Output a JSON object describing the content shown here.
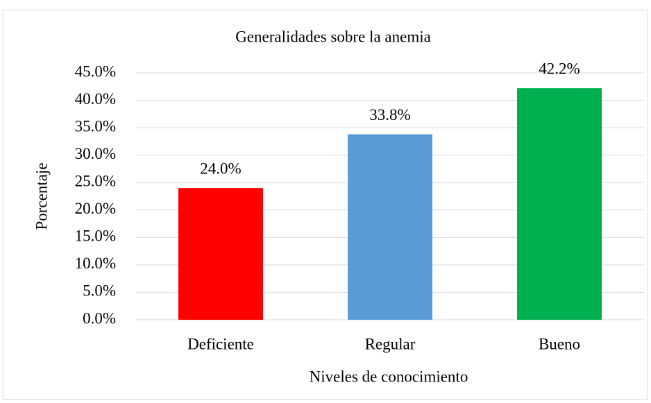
{
  "chart_data": {
    "type": "bar",
    "title": "Generalidades sobre la anemia",
    "x_label": "Niveles de conocimiento",
    "y_label": "Porcentaje",
    "categories": [
      "Deficiente",
      "Regular",
      "Bueno"
    ],
    "values": [
      24.0,
      33.8,
      42.2
    ],
    "value_labels": [
      "24.0%",
      "33.8%",
      "42.2%"
    ],
    "colors": [
      "#ff0000",
      "#5b9bd5",
      "#00b050"
    ],
    "ylim": [
      0,
      45
    ],
    "yticks": [
      {
        "value": 0,
        "label": "0.0%"
      },
      {
        "value": 5,
        "label": "5.0%"
      },
      {
        "value": 10,
        "label": "10.0%"
      },
      {
        "value": 15,
        "label": "15.0%"
      },
      {
        "value": 20,
        "label": "20.0%"
      },
      {
        "value": 25,
        "label": "25.0%"
      },
      {
        "value": 30,
        "label": "30.0%"
      },
      {
        "value": 35,
        "label": "35.0%"
      },
      {
        "value": 40,
        "label": "40.0%"
      },
      {
        "value": 45,
        "label": "45.0%"
      }
    ],
    "grid": true
  }
}
